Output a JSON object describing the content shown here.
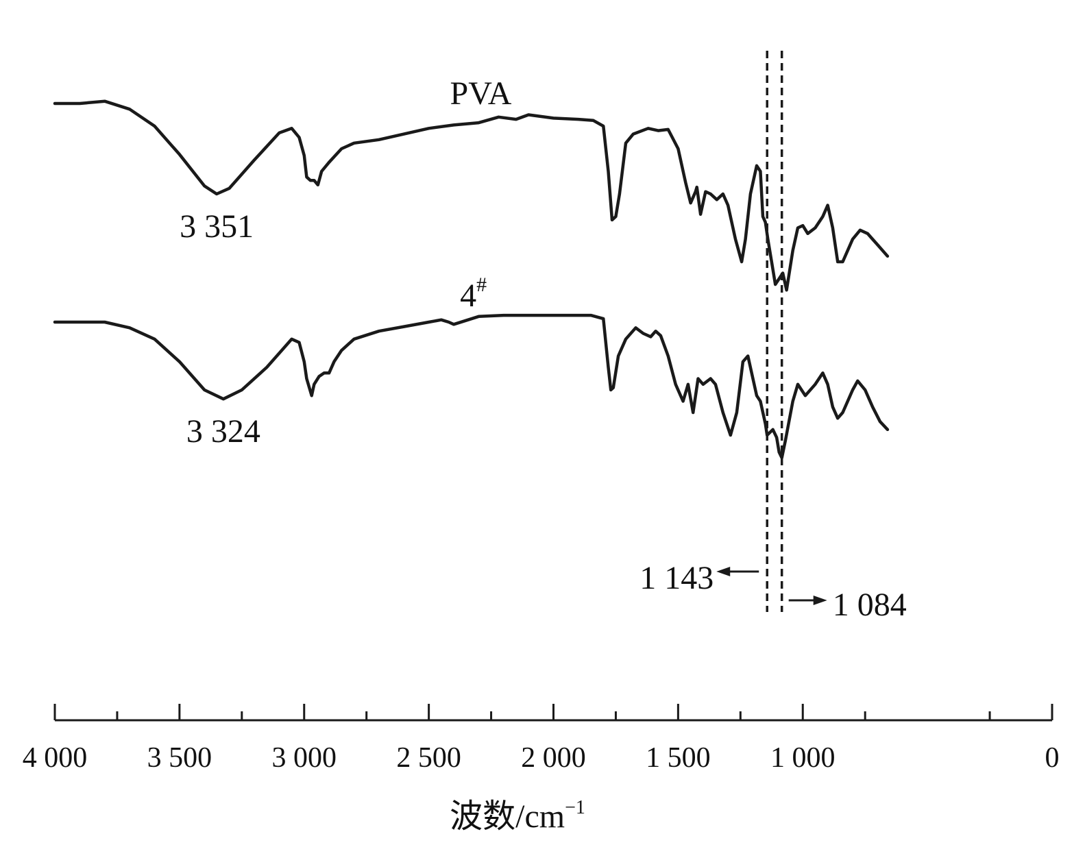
{
  "chart_data": {
    "type": "line",
    "title": "",
    "xlabel": "波数/cm",
    "xlabel_superscript": "−1",
    "ylabel": "",
    "xlim": [
      4000,
      0
    ],
    "x_reversed": true,
    "x_range_plotted": [
      4000,
      500
    ],
    "grid": false,
    "legend": "none",
    "x_ticks": [
      4000,
      3500,
      3000,
      2500,
      2000,
      1500,
      1000,
      0
    ],
    "x_tick_labels": [
      "4 000",
      "3 500",
      "3 000",
      "2 500",
      "2 000",
      "1 500",
      "1 000",
      "0"
    ],
    "x_minor_ticks": [
      3750,
      3250,
      2750,
      2250,
      1750,
      1250,
      750,
      250
    ],
    "series": [
      {
        "name": "PVA",
        "points": [
          [
            4000,
            0.6
          ],
          [
            3900,
            0.6
          ],
          [
            3800,
            0.62
          ],
          [
            3700,
            0.55
          ],
          [
            3600,
            0.4
          ],
          [
            3500,
            0.15
          ],
          [
            3400,
            -0.13
          ],
          [
            3351,
            -0.2
          ],
          [
            3300,
            -0.15
          ],
          [
            3200,
            0.1
          ],
          [
            3100,
            0.34
          ],
          [
            3050,
            0.38
          ],
          [
            3020,
            0.3
          ],
          [
            3000,
            0.14
          ],
          [
            2990,
            -0.05
          ],
          [
            2975,
            -0.08
          ],
          [
            2960,
            -0.08
          ],
          [
            2945,
            -0.12
          ],
          [
            2930,
            0.0
          ],
          [
            2900,
            0.08
          ],
          [
            2850,
            0.2
          ],
          [
            2800,
            0.25
          ],
          [
            2700,
            0.28
          ],
          [
            2600,
            0.33
          ],
          [
            2500,
            0.38
          ],
          [
            2400,
            0.41
          ],
          [
            2300,
            0.43
          ],
          [
            2220,
            0.48
          ],
          [
            2150,
            0.46
          ],
          [
            2100,
            0.5
          ],
          [
            2000,
            0.47
          ],
          [
            1900,
            0.46
          ],
          [
            1840,
            0.45
          ],
          [
            1800,
            0.4
          ],
          [
            1780,
            0.0
          ],
          [
            1765,
            -0.43
          ],
          [
            1750,
            -0.4
          ],
          [
            1735,
            -0.2
          ],
          [
            1710,
            0.25
          ],
          [
            1680,
            0.33
          ],
          [
            1620,
            0.38
          ],
          [
            1580,
            0.36
          ],
          [
            1540,
            0.37
          ],
          [
            1500,
            0.2
          ],
          [
            1470,
            -0.1
          ],
          [
            1450,
            -0.28
          ],
          [
            1430,
            -0.18
          ],
          [
            1425,
            -0.14
          ],
          [
            1410,
            -0.38
          ],
          [
            1390,
            -0.18
          ],
          [
            1370,
            -0.2
          ],
          [
            1345,
            -0.25
          ],
          [
            1320,
            -0.2
          ],
          [
            1300,
            -0.3
          ],
          [
            1270,
            -0.6
          ],
          [
            1245,
            -0.8
          ],
          [
            1230,
            -0.6
          ],
          [
            1210,
            -0.2
          ],
          [
            1185,
            0.05
          ],
          [
            1170,
            0.0
          ],
          [
            1160,
            -0.4
          ],
          [
            1150,
            -0.45
          ],
          [
            1140,
            -0.6
          ],
          [
            1125,
            -0.8
          ],
          [
            1110,
            -1.0
          ],
          [
            1095,
            -0.95
          ],
          [
            1080,
            -0.9
          ],
          [
            1065,
            -1.05
          ],
          [
            1040,
            -0.7
          ],
          [
            1020,
            -0.5
          ],
          [
            1000,
            -0.48
          ],
          [
            980,
            -0.55
          ],
          [
            950,
            -0.5
          ],
          [
            920,
            -0.4
          ],
          [
            900,
            -0.3
          ],
          [
            880,
            -0.5
          ],
          [
            860,
            -0.8
          ],
          [
            840,
            -0.8
          ],
          [
            800,
            -0.6
          ],
          [
            770,
            -0.52
          ],
          [
            740,
            -0.55
          ],
          [
            700,
            -0.65
          ],
          [
            660,
            -0.75
          ]
        ]
      },
      {
        "name": "4#",
        "points": [
          [
            4000,
            0.0
          ],
          [
            3900,
            0.0
          ],
          [
            3800,
            0.0
          ],
          [
            3700,
            -0.05
          ],
          [
            3600,
            -0.15
          ],
          [
            3500,
            -0.35
          ],
          [
            3400,
            -0.6
          ],
          [
            3324,
            -0.68
          ],
          [
            3250,
            -0.6
          ],
          [
            3150,
            -0.4
          ],
          [
            3050,
            -0.15
          ],
          [
            3020,
            -0.18
          ],
          [
            3000,
            -0.35
          ],
          [
            2990,
            -0.5
          ],
          [
            2970,
            -0.65
          ],
          [
            2960,
            -0.55
          ],
          [
            2940,
            -0.48
          ],
          [
            2920,
            -0.45
          ],
          [
            2900,
            -0.45
          ],
          [
            2880,
            -0.35
          ],
          [
            2850,
            -0.25
          ],
          [
            2800,
            -0.15
          ],
          [
            2700,
            -0.08
          ],
          [
            2600,
            -0.04
          ],
          [
            2500,
            0.0
          ],
          [
            2450,
            0.02
          ],
          [
            2420,
            0.0
          ],
          [
            2400,
            -0.02
          ],
          [
            2300,
            0.05
          ],
          [
            2200,
            0.06
          ],
          [
            2100,
            0.06
          ],
          [
            2000,
            0.06
          ],
          [
            1850,
            0.06
          ],
          [
            1800,
            0.03
          ],
          [
            1780,
            -0.4
          ],
          [
            1770,
            -0.6
          ],
          [
            1760,
            -0.58
          ],
          [
            1740,
            -0.3
          ],
          [
            1710,
            -0.15
          ],
          [
            1670,
            -0.05
          ],
          [
            1640,
            -0.1
          ],
          [
            1610,
            -0.13
          ],
          [
            1590,
            -0.08
          ],
          [
            1570,
            -0.12
          ],
          [
            1540,
            -0.3
          ],
          [
            1510,
            -0.55
          ],
          [
            1480,
            -0.7
          ],
          [
            1460,
            -0.55
          ],
          [
            1440,
            -0.8
          ],
          [
            1420,
            -0.5
          ],
          [
            1400,
            -0.55
          ],
          [
            1370,
            -0.5
          ],
          [
            1350,
            -0.55
          ],
          [
            1320,
            -0.8
          ],
          [
            1290,
            -1.0
          ],
          [
            1265,
            -0.8
          ],
          [
            1240,
            -0.35
          ],
          [
            1220,
            -0.3
          ],
          [
            1200,
            -0.5
          ],
          [
            1185,
            -0.65
          ],
          [
            1170,
            -0.7
          ],
          [
            1150,
            -0.9
          ],
          [
            1143,
            -1.0
          ],
          [
            1120,
            -0.95
          ],
          [
            1105,
            -1.02
          ],
          [
            1095,
            -1.15
          ],
          [
            1084,
            -1.2
          ],
          [
            1070,
            -1.05
          ],
          [
            1040,
            -0.7
          ],
          [
            1020,
            -0.55
          ],
          [
            990,
            -0.65
          ],
          [
            950,
            -0.55
          ],
          [
            920,
            -0.45
          ],
          [
            900,
            -0.55
          ],
          [
            880,
            -0.75
          ],
          [
            860,
            -0.85
          ],
          [
            840,
            -0.8
          ],
          [
            800,
            -0.6
          ],
          [
            780,
            -0.52
          ],
          [
            750,
            -0.6
          ],
          [
            720,
            -0.75
          ],
          [
            690,
            -0.88
          ],
          [
            660,
            -0.95
          ]
        ]
      }
    ],
    "series_labels": [
      {
        "text": "PVA",
        "series": 0
      },
      {
        "text": "4",
        "superscript": "#",
        "series": 1
      }
    ],
    "annotations": [
      {
        "text": "3 351",
        "x": 3351,
        "series": 0
      },
      {
        "text": "3 324",
        "x": 3324,
        "series": 1
      },
      {
        "text": "1 143",
        "x": 1143,
        "arrow": "left"
      },
      {
        "text": "1 084",
        "x": 1084,
        "arrow": "right"
      }
    ],
    "reference_lines": [
      1143,
      1084
    ]
  }
}
